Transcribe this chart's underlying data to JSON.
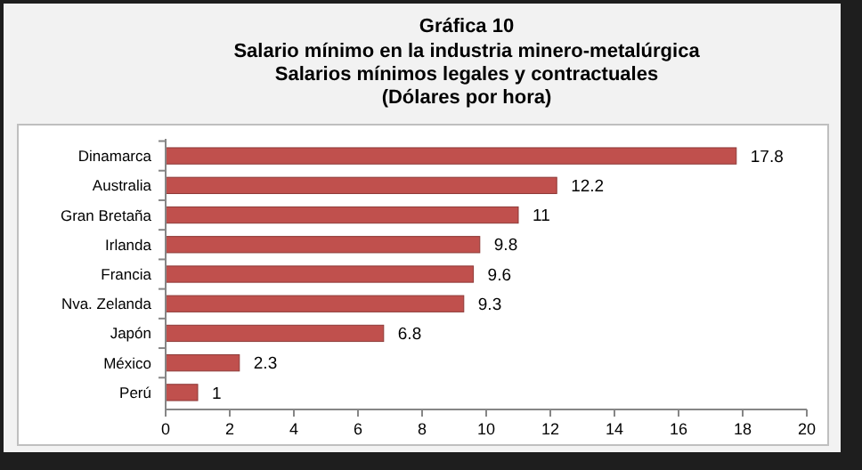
{
  "chart_data": {
    "type": "bar",
    "orientation": "horizontal",
    "title": "Gráfica 10",
    "subtitle": "Salario mínimo en la industria minero-metalúrgica\nSalarios mínimos legales y contractuales\n(Dólares por hora)",
    "categories": [
      "Dinamarca",
      "Australia",
      "Gran Bretaña",
      "Irlanda",
      "Francia",
      "Nva. Zelanda",
      "Japón",
      "México",
      "Perú"
    ],
    "values": [
      17.8,
      12.2,
      11,
      9.8,
      9.6,
      9.3,
      6.8,
      2.3,
      1
    ],
    "color": "#c0504d",
    "data_labels": true,
    "xlim": [
      0,
      20
    ],
    "xticks": [
      0,
      2,
      4,
      6,
      8,
      10,
      12,
      14,
      16,
      18,
      20
    ],
    "grid": false
  }
}
